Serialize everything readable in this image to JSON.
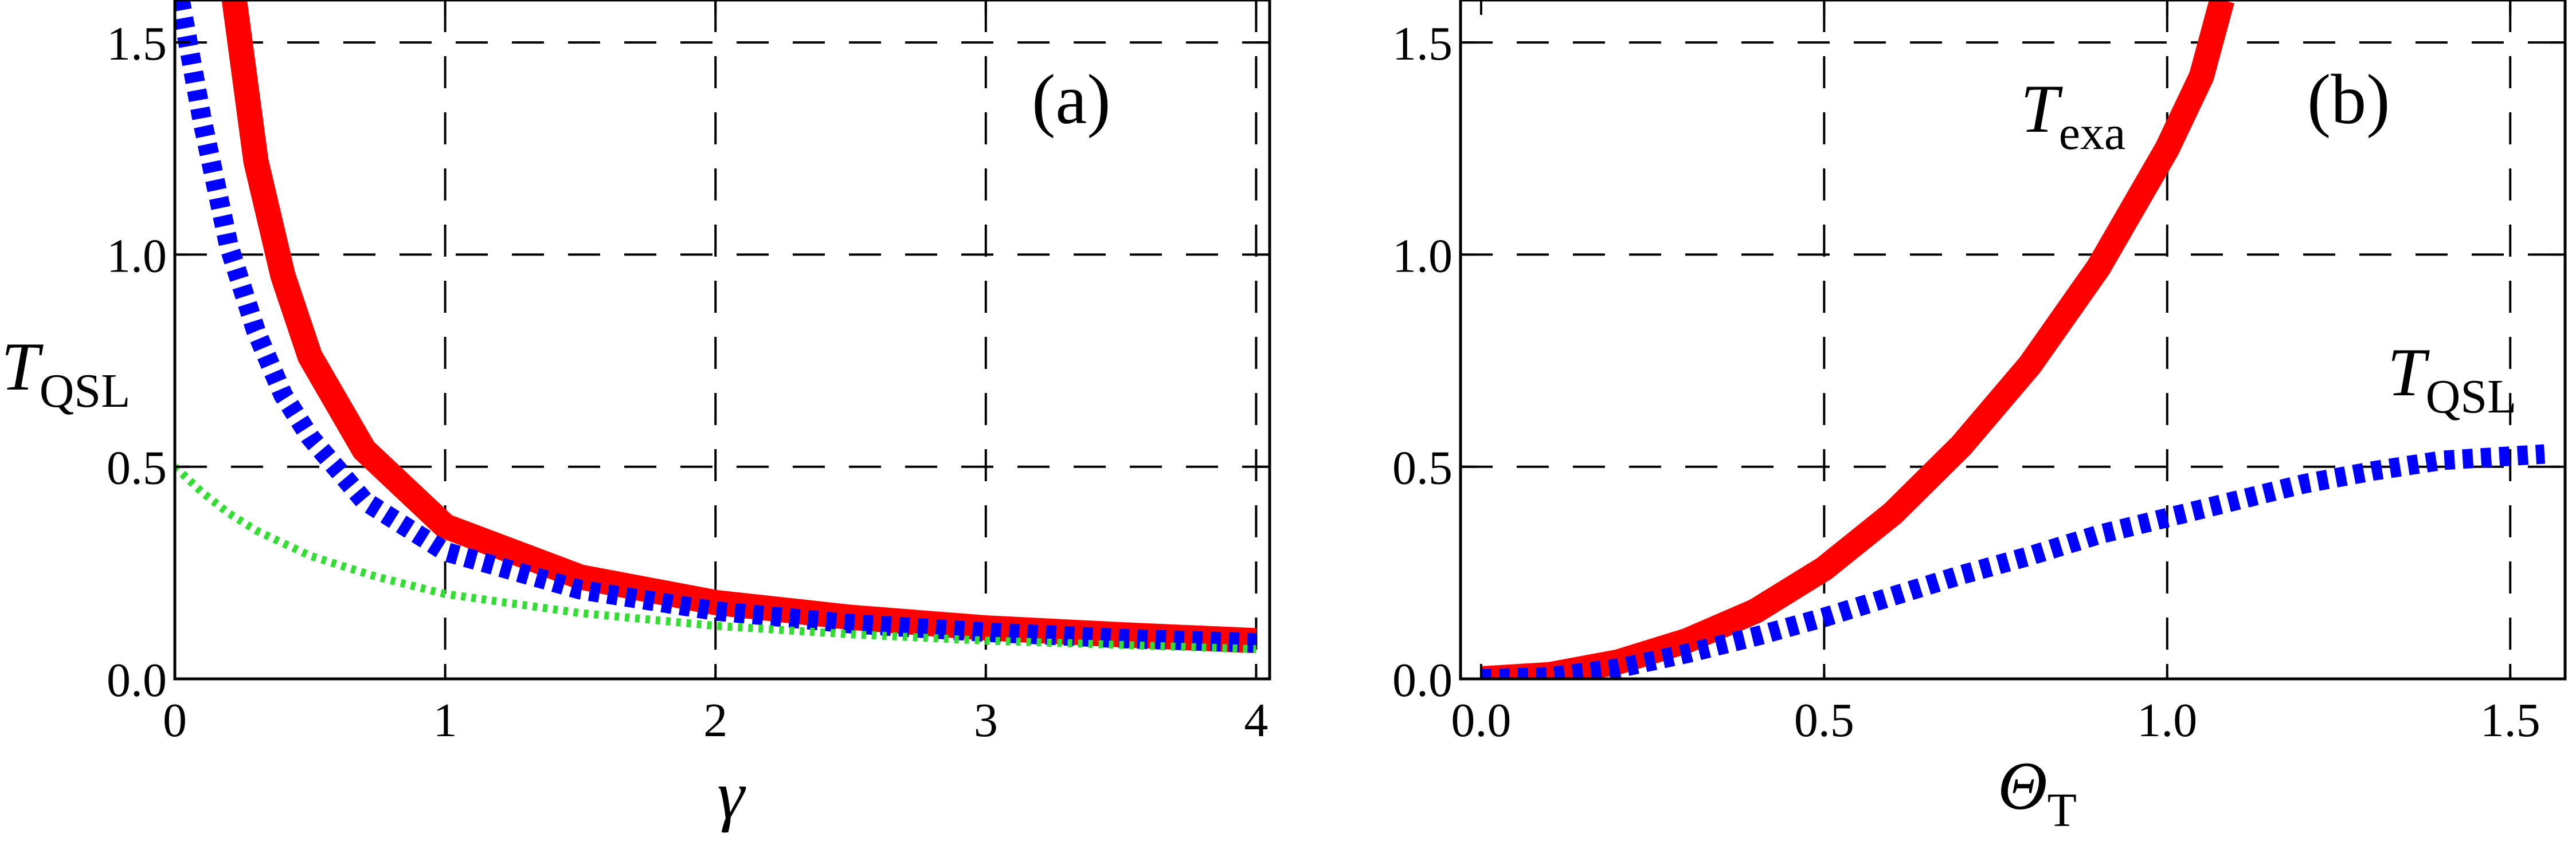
{
  "chart_data": [
    {
      "type": "line",
      "panel_label": "(a)",
      "xlabel": "γ",
      "ylabel": {
        "main": "T",
        "sub": "QSL"
      },
      "xlim": [
        0,
        4.05
      ],
      "ylim": [
        0,
        1.6
      ],
      "xticks": [
        0,
        1,
        2,
        3,
        4
      ],
      "xtick_labels": [
        "0",
        "1",
        "2",
        "3",
        "4"
      ],
      "yticks": [
        0.0,
        0.5,
        1.0,
        1.5
      ],
      "ytick_labels": [
        "0.0",
        "0.5",
        "1.0",
        "1.5"
      ],
      "grid": "dashed",
      "legend": "none",
      "series": [
        {
          "style": "solid",
          "color": "#ff0000",
          "x": [
            0.22,
            0.3,
            0.4,
            0.5,
            0.7,
            1.0,
            1.5,
            2.0,
            2.5,
            3.0,
            3.5,
            4.0
          ],
          "y": [
            1.6,
            1.22,
            0.95,
            0.76,
            0.54,
            0.36,
            0.24,
            0.18,
            0.145,
            0.12,
            0.104,
            0.09
          ]
        },
        {
          "style": "dotted-thick",
          "color": "#0000ff",
          "x": [
            0.02,
            0.1,
            0.2,
            0.3,
            0.4,
            0.5,
            0.7,
            1.0,
            1.5,
            2.0,
            2.5,
            3.0,
            3.5,
            4.0
          ],
          "y": [
            1.6,
            1.32,
            1.02,
            0.82,
            0.67,
            0.57,
            0.42,
            0.3,
            0.21,
            0.16,
            0.13,
            0.11,
            0.095,
            0.085
          ]
        },
        {
          "style": "dotted-thin",
          "color": "#33dd33",
          "x": [
            0.0,
            0.1,
            0.2,
            0.3,
            0.5,
            0.75,
            1.0,
            1.5,
            2.0,
            2.5,
            3.0,
            3.5,
            4.0
          ],
          "y": [
            0.5,
            0.44,
            0.39,
            0.35,
            0.29,
            0.24,
            0.2,
            0.155,
            0.125,
            0.105,
            0.09,
            0.08,
            0.07
          ]
        }
      ]
    },
    {
      "type": "line",
      "panel_label": "(b)",
      "xlabel": {
        "main": "Θ",
        "sub": "T"
      },
      "xlim": [
        -0.03,
        1.58
      ],
      "ylim": [
        0,
        1.6
      ],
      "xticks": [
        0.0,
        0.5,
        1.0,
        1.5
      ],
      "xtick_labels": [
        "0.0",
        "0.5",
        "1.0",
        "1.5"
      ],
      "yticks": [
        0.0,
        0.5,
        1.0,
        1.5
      ],
      "ytick_labels": [
        "0.0",
        "0.5",
        "1.0",
        "1.5"
      ],
      "grid": "dashed",
      "legend": "none",
      "series": [
        {
          "name": "T_exa",
          "label": {
            "main": "T",
            "sub": "exa"
          },
          "style": "solid",
          "color": "#ff0000",
          "x": [
            0.0,
            0.1,
            0.2,
            0.3,
            0.4,
            0.5,
            0.6,
            0.7,
            0.8,
            0.9,
            1.0,
            1.05,
            1.08
          ],
          "y": [
            0.0,
            0.01,
            0.04,
            0.09,
            0.16,
            0.26,
            0.39,
            0.55,
            0.74,
            0.97,
            1.25,
            1.42,
            1.6
          ]
        },
        {
          "name": "T_QSL",
          "label": {
            "main": "T",
            "sub": "QSL"
          },
          "style": "dotted-thick",
          "color": "#0000ff",
          "x": [
            0.0,
            0.1,
            0.2,
            0.3,
            0.4,
            0.5,
            0.6,
            0.7,
            0.8,
            0.9,
            1.0,
            1.1,
            1.2,
            1.3,
            1.4,
            1.5,
            1.55
          ],
          "y": [
            0.0,
            0.005,
            0.025,
            0.06,
            0.1,
            0.145,
            0.195,
            0.245,
            0.29,
            0.34,
            0.38,
            0.42,
            0.46,
            0.49,
            0.515,
            0.525,
            0.53
          ]
        }
      ]
    }
  ]
}
